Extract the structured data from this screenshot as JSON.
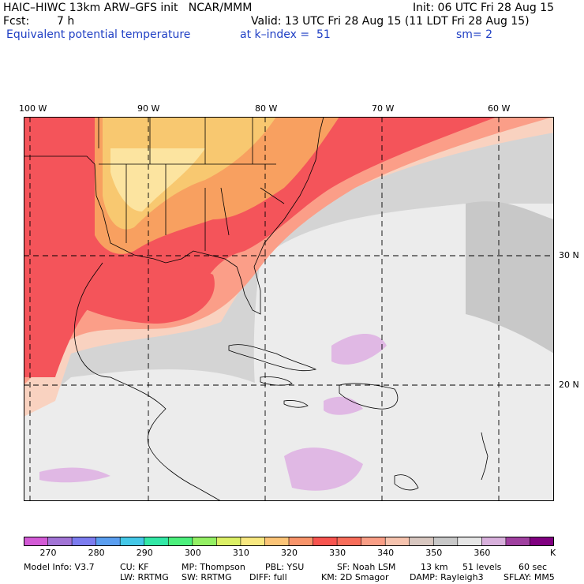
{
  "header": {
    "model_line": "HAIC–HIWC 13km ARW–GFS init   NCAR/MMM",
    "init": "Init: 06 UTC Fri 28 Aug 15",
    "fcst_label": "Fcst:",
    "fcst_value": "7 h",
    "valid": "Valid: 13 UTC Fri 28 Aug 15 (11 LDT Fri 28 Aug 15)",
    "field": "Equivalent potential temperature",
    "level": "at k–index =  51",
    "smooth": "sm= 2"
  },
  "map": {
    "lon_labels": [
      "100 W",
      "90 W",
      "80 W",
      "70 W",
      "60 W"
    ],
    "lat_labels": [
      "30 N",
      "20 N"
    ],
    "colors": {
      "land_line": "#000000",
      "grid": "#000000",
      "warm": "#f4545a",
      "warmer": "#fb9e88",
      "hot": "#f8c870",
      "yellow": "#fce4a0",
      "gray": "#d4d4d4",
      "lightgray": "#ececec",
      "lilac": "#e0b8e4",
      "salmon": "#f9d2c0"
    }
  },
  "colorbar": {
    "colors": [
      "#d35ad6",
      "#a274d6",
      "#7c7cf0",
      "#5a9ef0",
      "#44c8e8",
      "#32e8a6",
      "#4cf07c",
      "#94f064",
      "#dcf066",
      "#f8e880",
      "#fbc477",
      "#f8946a",
      "#f8544f",
      "#f86d5a",
      "#f99e86",
      "#f6c3ae",
      "#d8c7c0",
      "#c8c8c8",
      "#e6e6e6",
      "#d8b0dc",
      "#a040a0",
      "#800080"
    ],
    "labels": [
      "270",
      "280",
      "290",
      "300",
      "310",
      "320",
      "330",
      "340",
      "350",
      "360"
    ],
    "unit": "K"
  },
  "footer": {
    "line1": [
      "Model Info: V3.7",
      "CU: KF",
      "MP: Thompson",
      "PBL: YSU",
      "SF: Noah LSM",
      "13 km",
      "51 levels",
      "60 sec"
    ],
    "line2": [
      "LW: RRTMG",
      "SW: RRTMG",
      "DIFF: full",
      "KM: 2D Smagor",
      "DAMP: Rayleigh3",
      "SFLAY: MM5"
    ]
  }
}
